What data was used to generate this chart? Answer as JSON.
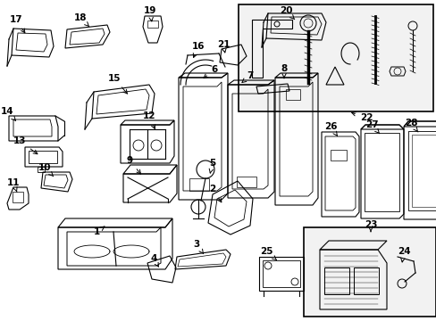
{
  "bg_color": "#ffffff",
  "line_color": "#000000",
  "fig_width": 4.89,
  "fig_height": 3.6,
  "dpi": 100
}
